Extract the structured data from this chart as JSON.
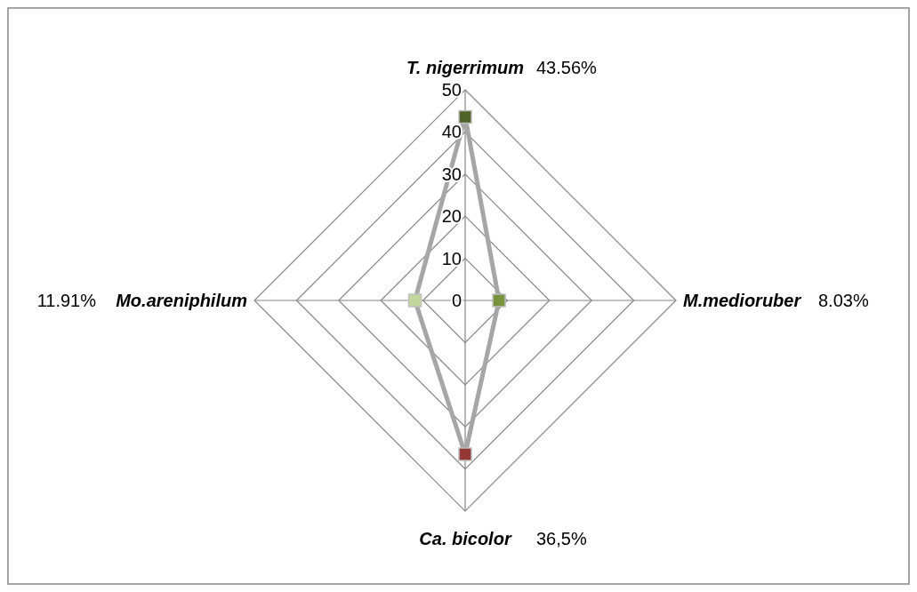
{
  "chart_data": {
    "type": "radar",
    "categories": [
      "T. nigerrimum",
      "M.medioruber",
      "Ca. bicolor",
      "Mo.areniphilum"
    ],
    "series": [
      {
        "color": "#a6a6a6",
        "colors": [
          "#4f6228",
          "#77933c",
          "#953735",
          "#c3d69b"
        ],
        "values": [
          43.56,
          8.03,
          36.5,
          11.91
        ]
      }
    ],
    "value_labels": [
      "43.56%",
      "8.03%",
      "36,5%",
      "11.91%"
    ],
    "ylim": [
      0,
      50
    ],
    "yticks": [
      0,
      10,
      20,
      30,
      40,
      50
    ],
    "marker": "square"
  }
}
